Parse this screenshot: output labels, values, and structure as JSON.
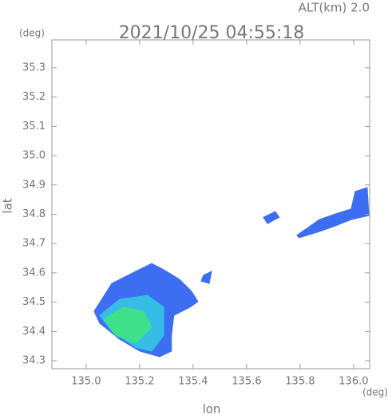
{
  "chart_data": {
    "type": "echo-map",
    "title": "2021/10/25 04:55:18",
    "annotation": "ALT(km) 2.0",
    "x_label": "lon",
    "y_label": "lat",
    "x_unit": "(deg)",
    "y_unit": "(deg)",
    "xlim": [
      134.872,
      136.06
    ],
    "ylim": [
      34.273,
      35.395
    ],
    "xticks": [
      {
        "value": 135.0,
        "label": "135.0"
      },
      {
        "value": 135.2,
        "label": "135.2"
      },
      {
        "value": 135.4,
        "label": "135.4"
      },
      {
        "value": 135.6,
        "label": "135.6"
      },
      {
        "value": 135.8,
        "label": "135.8"
      },
      {
        "value": 136.0,
        "label": "136.0"
      }
    ],
    "yticks": [
      34.3,
      34.4,
      34.5,
      34.6,
      34.7,
      34.8,
      34.9,
      {
        "value": 35.0,
        "label": "35.0"
      },
      35.1,
      35.2,
      35.3
    ],
    "series": [
      {
        "color": "#3d6ef2",
        "x": [
          135.03,
          135.096,
          135.185,
          135.245,
          135.29,
          135.349,
          135.394,
          135.418,
          135.388,
          135.328,
          135.319,
          135.319,
          135.275,
          135.2,
          135.125,
          135.051
        ],
        "y": [
          34.469,
          34.564,
          34.605,
          34.632,
          34.611,
          34.578,
          34.537,
          34.502,
          34.483,
          34.455,
          34.387,
          34.333,
          34.314,
          34.333,
          34.374,
          34.428
        ]
      },
      {
        "color": "#36bde6",
        "x": [
          135.051,
          135.125,
          135.23,
          135.29,
          135.29,
          135.245,
          135.185,
          135.096
        ],
        "y": [
          34.455,
          34.51,
          34.523,
          34.483,
          34.387,
          34.333,
          34.346,
          34.401
        ]
      },
      {
        "color": "#3fe08a",
        "x": [
          135.066,
          135.14,
          135.215,
          135.245,
          135.185,
          135.11
        ],
        "y": [
          34.442,
          34.483,
          34.469,
          34.414,
          34.36,
          34.387
        ]
      },
      {
        "color": "#3d6ef2",
        "x": [
          135.788,
          135.872,
          135.931,
          135.991,
          136.006,
          136.051,
          136.057,
          135.991,
          135.931,
          135.872,
          135.797
        ],
        "y": [
          34.728,
          34.782,
          34.801,
          34.818,
          34.878,
          34.891,
          34.796,
          34.782,
          34.76,
          34.741,
          34.72
        ]
      },
      {
        "color": "#3d6ef2",
        "x": [
          135.663,
          135.707,
          135.722,
          135.678
        ],
        "y": [
          34.79,
          34.809,
          34.79,
          34.768
        ]
      },
      {
        "color": "#3d6ef2",
        "x": [
          135.439,
          135.469,
          135.46,
          135.43
        ],
        "y": [
          34.592,
          34.605,
          34.564,
          34.572
        ]
      }
    ]
  }
}
